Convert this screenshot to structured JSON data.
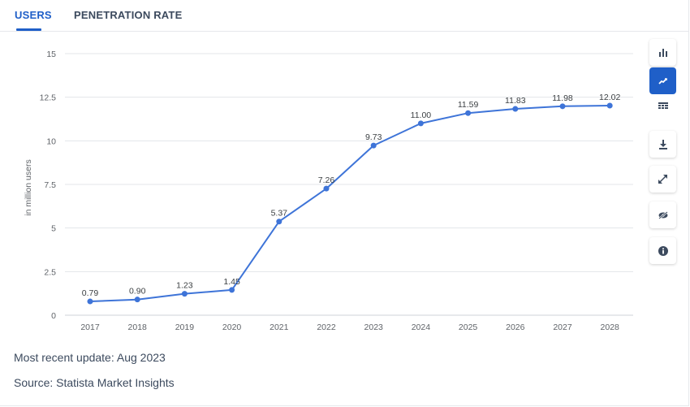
{
  "tabs": {
    "users": "USERS",
    "penetration": "PENETRATION RATE"
  },
  "footer": {
    "update": "Most recent update: Aug 2023",
    "source": "Source: Statista Market Insights"
  },
  "toolbar": {
    "buttons": [
      "bar-chart-icon",
      "line-chart-icon",
      "table-icon",
      "download-icon",
      "expand-icon",
      "hide-icon",
      "info-icon"
    ],
    "active": "line-chart-icon"
  },
  "colors": {
    "accent": "#1f5fc8",
    "line": "#3e74d8",
    "grid": "#e3e6ea"
  },
  "chart_data": {
    "type": "line",
    "title": "",
    "xlabel": "",
    "ylabel": "in million users",
    "ylim": [
      0,
      15
    ],
    "yticks": [
      "0",
      "2.5",
      "5",
      "7.5",
      "10",
      "12.5",
      "15"
    ],
    "ytick_values": [
      0,
      2.5,
      5,
      7.5,
      10,
      12.5,
      15
    ],
    "categories": [
      "2017",
      "2018",
      "2019",
      "2020",
      "2021",
      "2022",
      "2023",
      "2024",
      "2025",
      "2026",
      "2027",
      "2028"
    ],
    "values": [
      0.79,
      0.9,
      1.23,
      1.45,
      5.37,
      7.26,
      9.73,
      11.0,
      11.59,
      11.83,
      11.98,
      12.02
    ],
    "labels": [
      "0.79",
      "0.90",
      "1.23",
      "1.45",
      "5.37",
      "7.26",
      "9.73",
      "11.00",
      "11.59",
      "11.83",
      "11.98",
      "12.02"
    ],
    "grid": true
  }
}
